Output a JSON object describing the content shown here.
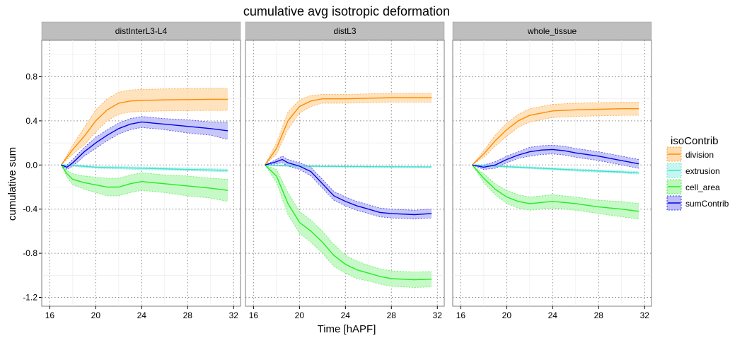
{
  "chart_data": {
    "type": "line",
    "title": "cumulative avg isotropic deformation",
    "xlabel": "Time [hAPF]",
    "ylabel": "cumulative sum",
    "xlim": [
      15.3,
      32.6
    ],
    "ylim": [
      -1.28,
      1.13
    ],
    "x_ticks": [
      16,
      20,
      24,
      28,
      32
    ],
    "y_ticks": [
      0.8,
      0.4,
      0.0,
      -0.4,
      -0.8,
      -1.2
    ],
    "y_tick_labels": [
      "0.8",
      "0.4",
      "0.0",
      "-0.4",
      "-0.8",
      "-1.2"
    ],
    "grid": true,
    "legend_position": "right",
    "legend": {
      "title": "isoContrib",
      "entries": [
        {
          "name": "division",
          "color": "#FF8C00",
          "fill": "#FFDDB3"
        },
        {
          "name": "extrusion",
          "color": "#40E0D0",
          "fill": "#C6F6F1"
        },
        {
          "name": "cell_area",
          "color": "#22EE22",
          "fill": "#BDF7BD"
        },
        {
          "name": "sumContrib",
          "color": "#0000EE",
          "fill": "#BDBDF7"
        }
      ]
    },
    "panels": [
      {
        "strip": "distInterL3-L4",
        "series": [
          {
            "name": "division",
            "points": [
              [
                17,
                0
              ],
              [
                18,
                0.14
              ],
              [
                19,
                0.26
              ],
              [
                20,
                0.4
              ],
              [
                21,
                0.5
              ],
              [
                22,
                0.56
              ],
              [
                23,
                0.58
              ],
              [
                24,
                0.585
              ],
              [
                26,
                0.59
              ],
              [
                28,
                0.593
              ],
              [
                30,
                0.595
              ],
              [
                31.5,
                0.595
              ]
            ],
            "band": [
              0,
              0.04,
              0.08,
              0.1,
              0.1,
              0.1,
              0.1,
              0.1,
              0.1,
              0.1,
              0.1,
              0.1
            ]
          },
          {
            "name": "extrusion",
            "points": [
              [
                17,
                0
              ],
              [
                18,
                -0.005
              ],
              [
                20,
                -0.02
              ],
              [
                22,
                -0.025
              ],
              [
                24,
                -0.03
              ],
              [
                26,
                -0.035
              ],
              [
                28,
                -0.04
              ],
              [
                30,
                -0.045
              ],
              [
                31.5,
                -0.05
              ]
            ],
            "band": [
              0,
              0.008,
              0.01,
              0.01,
              0.012,
              0.012,
              0.012,
              0.012,
              0.012
            ]
          },
          {
            "name": "cell_area",
            "points": [
              [
                17,
                0
              ],
              [
                17.5,
                -0.08
              ],
              [
                18,
                -0.13
              ],
              [
                19,
                -0.16
              ],
              [
                20,
                -0.18
              ],
              [
                21,
                -0.2
              ],
              [
                22,
                -0.2
              ],
              [
                23,
                -0.17
              ],
              [
                24,
                -0.15
              ],
              [
                25,
                -0.16
              ],
              [
                26,
                -0.17
              ],
              [
                28,
                -0.19
              ],
              [
                30,
                -0.21
              ],
              [
                31.5,
                -0.23
              ]
            ],
            "band": [
              0,
              0.03,
              0.05,
              0.06,
              0.07,
              0.08,
              0.08,
              0.08,
              0.08,
              0.08,
              0.08,
              0.09,
              0.09,
              0.1
            ]
          },
          {
            "name": "sumContrib",
            "points": [
              [
                17,
                0
              ],
              [
                17.5,
                -0.02
              ],
              [
                18,
                0.02
              ],
              [
                19,
                0.12
              ],
              [
                20,
                0.2
              ],
              [
                21,
                0.27
              ],
              [
                22,
                0.33
              ],
              [
                23,
                0.37
              ],
              [
                24,
                0.39
              ],
              [
                25,
                0.38
              ],
              [
                26,
                0.37
              ],
              [
                28,
                0.35
              ],
              [
                30,
                0.33
              ],
              [
                31.5,
                0.31
              ]
            ],
            "band": [
              0,
              0.02,
              0.03,
              0.04,
              0.05,
              0.05,
              0.05,
              0.05,
              0.05,
              0.05,
              0.05,
              0.06,
              0.06,
              0.08
            ]
          }
        ]
      },
      {
        "strip": "distL3",
        "series": [
          {
            "name": "division",
            "points": [
              [
                17,
                0
              ],
              [
                18,
                0.15
              ],
              [
                19,
                0.4
              ],
              [
                20,
                0.53
              ],
              [
                21,
                0.58
              ],
              [
                22,
                0.6
              ],
              [
                23,
                0.6
              ],
              [
                24,
                0.6
              ],
              [
                26,
                0.605
              ],
              [
                28,
                0.61
              ],
              [
                30,
                0.61
              ],
              [
                31.5,
                0.61
              ]
            ],
            "band": [
              0,
              0.05,
              0.08,
              0.06,
              0.05,
              0.04,
              0.04,
              0.04,
              0.04,
              0.04,
              0.04,
              0.04
            ]
          },
          {
            "name": "extrusion",
            "points": [
              [
                17,
                0
              ],
              [
                18,
                -0.005
              ],
              [
                20,
                -0.01
              ],
              [
                22,
                -0.012
              ],
              [
                24,
                -0.014
              ],
              [
                26,
                -0.015
              ],
              [
                28,
                -0.016
              ],
              [
                30,
                -0.017
              ],
              [
                31.5,
                -0.018
              ]
            ],
            "band": [
              0,
              0.005,
              0.006,
              0.006,
              0.006,
              0.006,
              0.006,
              0.006,
              0.006
            ]
          },
          {
            "name": "cell_area",
            "points": [
              [
                17,
                0
              ],
              [
                18,
                -0.1
              ],
              [
                19,
                -0.35
              ],
              [
                20,
                -0.52
              ],
              [
                21,
                -0.6
              ],
              [
                22,
                -0.7
              ],
              [
                23,
                -0.82
              ],
              [
                24,
                -0.9
              ],
              [
                25,
                -0.95
              ],
              [
                26,
                -0.98
              ],
              [
                27,
                -1.01
              ],
              [
                28,
                -1.03
              ],
              [
                30,
                -1.04
              ],
              [
                31.5,
                -1.035
              ]
            ],
            "band": [
              0,
              0.06,
              0.1,
              0.1,
              0.1,
              0.1,
              0.1,
              0.08,
              0.08,
              0.07,
              0.07,
              0.07,
              0.07,
              0.07
            ]
          },
          {
            "name": "sumContrib",
            "points": [
              [
                17,
                0
              ],
              [
                18,
                0.03
              ],
              [
                18.5,
                0.05
              ],
              [
                19,
                0.02
              ],
              [
                20,
                -0.01
              ],
              [
                21,
                -0.06
              ],
              [
                22,
                -0.17
              ],
              [
                23,
                -0.28
              ],
              [
                24,
                -0.33
              ],
              [
                25,
                -0.37
              ],
              [
                26,
                -0.4
              ],
              [
                27,
                -0.43
              ],
              [
                28,
                -0.44
              ],
              [
                30,
                -0.45
              ],
              [
                31.5,
                -0.44
              ]
            ],
            "band": [
              0,
              0.02,
              0.03,
              0.03,
              0.03,
              0.04,
              0.04,
              0.04,
              0.04,
              0.04,
              0.04,
              0.04,
              0.04,
              0.04,
              0.04
            ]
          }
        ]
      },
      {
        "strip": "whole_tissue",
        "series": [
          {
            "name": "division",
            "points": [
              [
                17,
                0
              ],
              [
                18,
                0.1
              ],
              [
                19,
                0.22
              ],
              [
                20,
                0.32
              ],
              [
                21,
                0.4
              ],
              [
                22,
                0.45
              ],
              [
                24,
                0.49
              ],
              [
                26,
                0.5
              ],
              [
                28,
                0.505
              ],
              [
                30,
                0.51
              ],
              [
                31.5,
                0.51
              ]
            ],
            "band": [
              0,
              0.03,
              0.05,
              0.06,
              0.06,
              0.06,
              0.06,
              0.06,
              0.06,
              0.06,
              0.06
            ]
          },
          {
            "name": "extrusion",
            "points": [
              [
                17,
                0
              ],
              [
                18,
                -0.005
              ],
              [
                20,
                -0.015
              ],
              [
                22,
                -0.025
              ],
              [
                24,
                -0.035
              ],
              [
                26,
                -0.045
              ],
              [
                28,
                -0.055
              ],
              [
                30,
                -0.063
              ],
              [
                31.5,
                -0.072
              ]
            ],
            "band": [
              0,
              0.006,
              0.008,
              0.008,
              0.01,
              0.01,
              0.01,
              0.01,
              0.012
            ]
          },
          {
            "name": "cell_area",
            "points": [
              [
                17,
                0
              ],
              [
                18,
                -0.12
              ],
              [
                19,
                -0.22
              ],
              [
                20,
                -0.29
              ],
              [
                21,
                -0.33
              ],
              [
                22,
                -0.35
              ],
              [
                23,
                -0.34
              ],
              [
                24,
                -0.33
              ],
              [
                25,
                -0.34
              ],
              [
                26,
                -0.35
              ],
              [
                28,
                -0.38
              ],
              [
                30,
                -0.4
              ],
              [
                31.5,
                -0.42
              ]
            ],
            "band": [
              0,
              0.04,
              0.05,
              0.06,
              0.06,
              0.06,
              0.06,
              0.06,
              0.06,
              0.06,
              0.06,
              0.07,
              0.07
            ]
          },
          {
            "name": "sumContrib",
            "points": [
              [
                17,
                0
              ],
              [
                18,
                -0.02
              ],
              [
                19,
                0
              ],
              [
                20,
                0.05
              ],
              [
                21,
                0.09
              ],
              [
                22,
                0.12
              ],
              [
                23,
                0.135
              ],
              [
                24,
                0.14
              ],
              [
                25,
                0.13
              ],
              [
                26,
                0.11
              ],
              [
                28,
                0.08
              ],
              [
                30,
                0.04
              ],
              [
                31.5,
                0.01
              ]
            ],
            "band": [
              0,
              0.02,
              0.03,
              0.03,
              0.03,
              0.04,
              0.04,
              0.04,
              0.04,
              0.04,
              0.04,
              0.04,
              0.04
            ]
          }
        ]
      }
    ]
  }
}
